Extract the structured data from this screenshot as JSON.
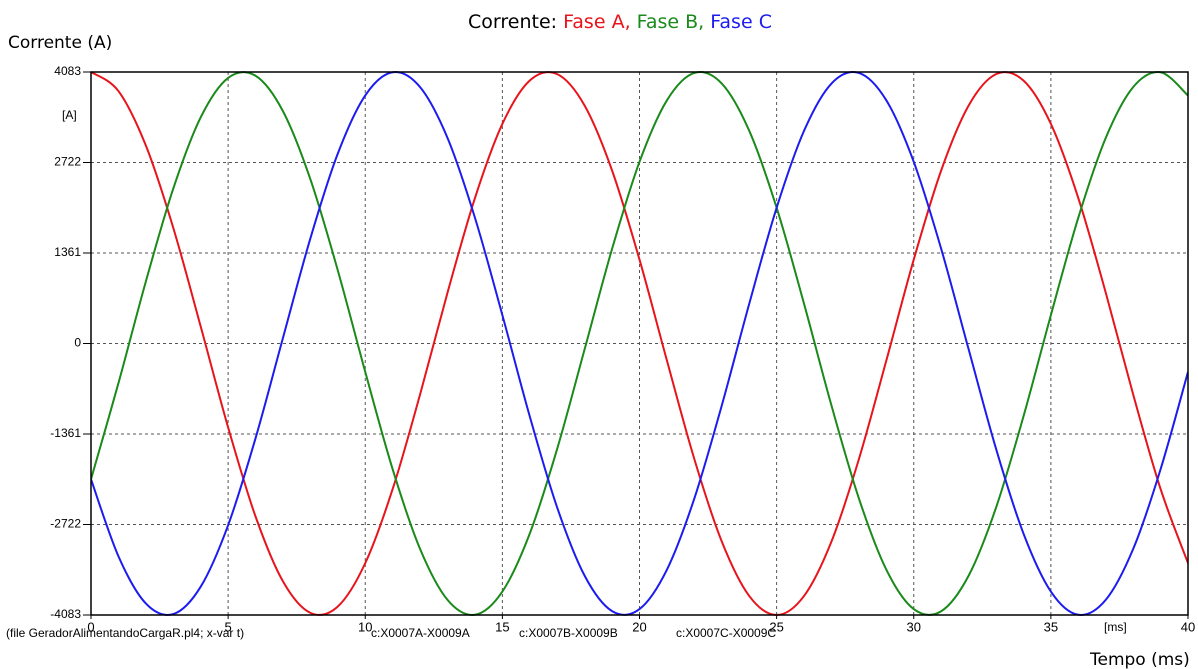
{
  "chart_data": {
    "type": "line",
    "title": {
      "prefix": "Corrente:",
      "parts": [
        "Fase A,",
        "Fase B,",
        "Fase C"
      ]
    },
    "y_label": "Corrente (A)",
    "x_label": "Tempo (ms)",
    "y_unit": "[A]",
    "x_unit": "[ms]",
    "file_note": "(file GeradorAlimentandoCargaR.pl4; x-var t)",
    "x": [
      0,
      1,
      2,
      3,
      4,
      5,
      6,
      7,
      8,
      9,
      10,
      11,
      12,
      13,
      14,
      15,
      16,
      17,
      18,
      19,
      20,
      21,
      22,
      23,
      24,
      25,
      26,
      27,
      28,
      29,
      30,
      31,
      32,
      33,
      34,
      35,
      36,
      37,
      38,
      39,
      40
    ],
    "series": [
      {
        "name": "c:X0007A-X0009A",
        "color": "#e8141c",
        "values": [
          4083,
          3796,
          2977,
          1739,
          256,
          -1262,
          -2602,
          -3578,
          -4051,
          -3955,
          -3303,
          -2188,
          -765,
          765,
          2188,
          3303,
          3955,
          4051,
          3578,
          2602,
          1262,
          -256,
          -1739,
          -2977,
          -3796,
          -4083,
          -3796,
          -2977,
          -1739,
          -256,
          1262,
          2602,
          3578,
          4051,
          3955,
          3303,
          2188,
          765,
          -765,
          -2188,
          -3303
        ]
      },
      {
        "name": "c:X0007B-X0009B",
        "color": "#1a8a1a",
        "values": [
          -2042,
          -597,
          933,
          2330,
          3401,
          3994,
          4026,
          3493,
          2469,
          1098,
          -427,
          -1892,
          -3091,
          -3856,
          -4079,
          -3730,
          -2857,
          -1582,
          -85,
          1423,
          2732,
          3657,
          4069,
          3909,
          3200,
          2042,
          597,
          -933,
          -2330,
          -3401,
          -3994,
          -4026,
          -3493,
          -2469,
          -1098,
          427,
          1892,
          3091,
          3856,
          4079,
          3730
        ]
      },
      {
        "name": "c:X0007C-X0009C",
        "color": "#1c1cf0",
        "values": [
          -2041,
          -3199,
          -3910,
          -4069,
          -3657,
          -2732,
          -1424,
          85,
          1582,
          2857,
          3730,
          4080,
          3856,
          3091,
          1891,
          427,
          -1098,
          -2469,
          -3493,
          -4025,
          -3994,
          -3401,
          -2330,
          -932,
          596,
          2041,
          3199,
          3910,
          4069,
          3657,
          2732,
          1424,
          -85,
          -1582,
          -2857,
          -3730,
          -4080,
          -3856,
          -3091,
          -1891,
          -427
        ]
      }
    ],
    "xlim": [
      0,
      40
    ],
    "xticks": [
      0,
      5,
      10,
      15,
      20,
      25,
      30,
      35,
      40
    ],
    "ylim": [
      -4083,
      4083
    ],
    "yticks": [
      -4083,
      -2722,
      -1361,
      0,
      1361,
      2722,
      4083
    ],
    "grid": true
  }
}
